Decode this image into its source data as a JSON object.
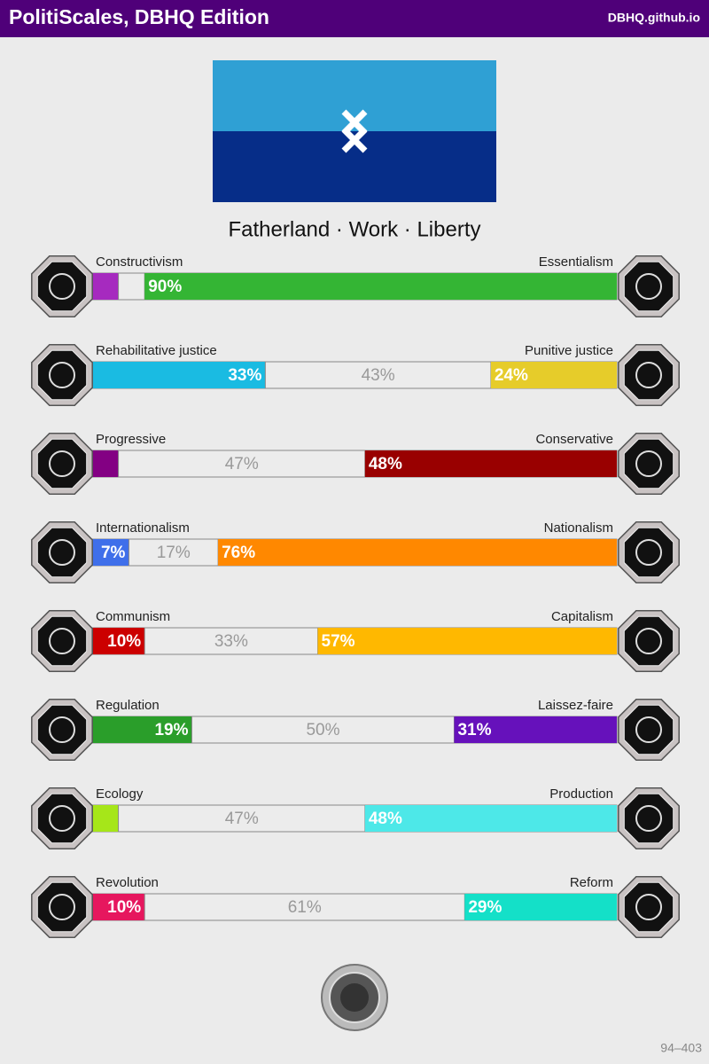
{
  "header": {
    "title": "PolitiScales, DBHQ Edition",
    "site": "DBHQ.github.io"
  },
  "motto": "Fatherland · Work · Liberty",
  "axes": [
    {
      "left": "Constructivism",
      "right": "Essentialism",
      "segments": [
        {
          "value": 5,
          "color": "#a62abf"
        },
        {
          "value": 5
        },
        {
          "value": 90,
          "label": "90%",
          "color": "#34b534"
        }
      ]
    },
    {
      "left": "Rehabilitative justice",
      "right": "Punitive justice",
      "segments": [
        {
          "value": 33,
          "label": "33%",
          "color": "#1abbe2"
        },
        {
          "value": 43,
          "label": "43%"
        },
        {
          "value": 24,
          "label": "24%",
          "color": "#e6cc2a"
        }
      ]
    },
    {
      "left": "Progressive",
      "right": "Conservative",
      "segments": [
        {
          "value": 5,
          "color": "#830083"
        },
        {
          "value": 47,
          "label": "47%"
        },
        {
          "value": 48,
          "label": "48%",
          "color": "#990000"
        }
      ]
    },
    {
      "left": "Internationalism",
      "right": "Nationalism",
      "segments": [
        {
          "value": 7,
          "label": "7%",
          "color": "#3f6fea"
        },
        {
          "value": 17,
          "label": "17%"
        },
        {
          "value": 76,
          "label": "76%",
          "color": "#ff8800"
        }
      ]
    },
    {
      "left": "Communism",
      "right": "Capitalism",
      "segments": [
        {
          "value": 10,
          "label": "10%",
          "color": "#cc0000"
        },
        {
          "value": 33,
          "label": "33%"
        },
        {
          "value": 57,
          "label": "57%",
          "color": "#ffb800"
        }
      ]
    },
    {
      "left": "Regulation",
      "right": "Laissez-faire",
      "segments": [
        {
          "value": 19,
          "label": "19%",
          "color": "#2a9e2a"
        },
        {
          "value": 50,
          "label": "50%"
        },
        {
          "value": 31,
          "label": "31%",
          "color": "#6611bb"
        }
      ]
    },
    {
      "left": "Ecology",
      "right": "Production",
      "segments": [
        {
          "value": 5,
          "color": "#a6e619"
        },
        {
          "value": 47,
          "label": "47%"
        },
        {
          "value": 48,
          "label": "48%",
          "color": "#4de8e8"
        }
      ]
    },
    {
      "left": "Revolution",
      "right": "Reform",
      "segments": [
        {
          "value": 10,
          "label": "10%",
          "color": "#e6175e"
        },
        {
          "value": 61,
          "label": "61%"
        },
        {
          "value": 29,
          "label": "29%",
          "color": "#14e0c8"
        }
      ]
    }
  ],
  "footer": "94–403"
}
